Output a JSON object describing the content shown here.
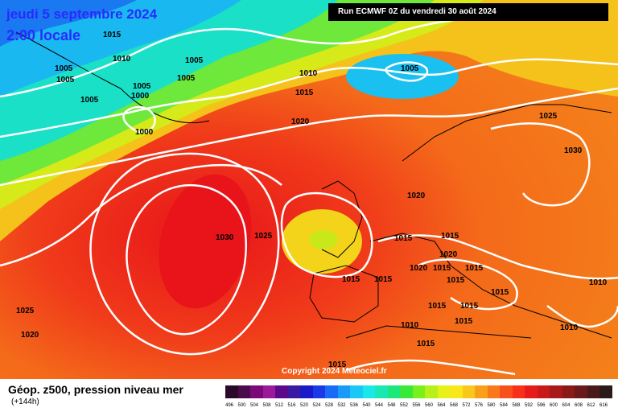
{
  "header": {
    "date_title": "jeudi 5 septembre 2024",
    "time_title": "2:00 locale",
    "run_label": "Run ECMWF 0Z du vendredi 30 août 2024"
  },
  "map": {
    "copyright": "Copyright 2024 Meteociel.fr",
    "isobar_labels": [
      "1015",
      "1010",
      "1005",
      "1005",
      "1005",
      "1005",
      "1005",
      "1000",
      "1005",
      "1000",
      "1005",
      "1010",
      "1015",
      "1020",
      "1025",
      "1030",
      "1030",
      "1025",
      "1020",
      "1015",
      "1015",
      "1020",
      "1015",
      "1020",
      "1015",
      "1015",
      "1015",
      "1015",
      "1015",
      "1015",
      "1015",
      "1010",
      "1015",
      "1010",
      "1010",
      "1015",
      "1025",
      "1020",
      "1015"
    ]
  },
  "legend": {
    "title": "Géop. z500, pression niveau mer",
    "subtitle": "(+144h)",
    "scale_values": [
      "496",
      "500",
      "504",
      "508",
      "512",
      "516",
      "520",
      "524",
      "528",
      "532",
      "536",
      "540",
      "544",
      "548",
      "552",
      "556",
      "560",
      "564",
      "568",
      "572",
      "576",
      "580",
      "584",
      "588",
      "592",
      "596",
      "600",
      "604",
      "608",
      "612",
      "616"
    ],
    "scale_colors": [
      "#2a0a2a",
      "#4b0a4b",
      "#7a0a7a",
      "#9a1a9a",
      "#5a0a8a",
      "#3a1aa0",
      "#1a1ac8",
      "#1a3ae8",
      "#1a6af8",
      "#1a9af8",
      "#1ac8f8",
      "#1ae8e8",
      "#1ae8b0",
      "#1ae87a",
      "#3ae83a",
      "#7af01a",
      "#b8f01a",
      "#e8f01a",
      "#f8e81a",
      "#f8c81a",
      "#f8a01a",
      "#f8781a",
      "#f8501a",
      "#f8301a",
      "#e81a1a",
      "#c81a1a",
      "#a81a1a",
      "#8a1a1a",
      "#6a1a1a",
      "#4a1a1a",
      "#2a1a1a"
    ]
  }
}
